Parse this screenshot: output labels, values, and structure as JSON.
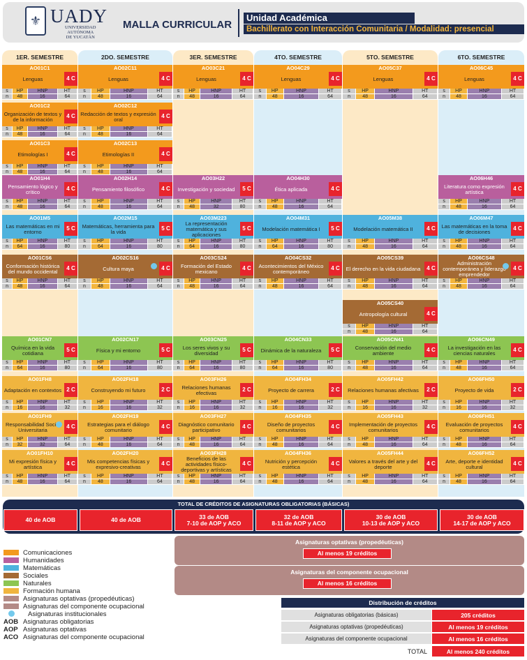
{
  "header": {
    "logo_text": "UADY",
    "university_lines": [
      "UNIVERSIDAD",
      "AUTÓNOMA",
      "DE YUCATÁN"
    ],
    "title": "MALLA CURRICULAR",
    "unit_label": "Unidad Académica",
    "program": "Bachillerato con Interacción Comunitaria / Modalidad: presencial"
  },
  "grid_labels": {
    "s": "s",
    "hp": "HP",
    "hnp": "HNP",
    "ht": "HT",
    "n": "n"
  },
  "colors": {
    "comunicaciones": "#f39a1d",
    "humanidades": "#b95f9d",
    "matematicas": "#4fb2dd",
    "sociales": "#a46a34",
    "naturales": "#8dc552",
    "formacion": "#f0b53f",
    "optativas": "#b38a86",
    "ocupacional": "#b38a86",
    "institucionales": "#73c9ec",
    "credit_red": "#e8242c",
    "navy": "#1d2b4f"
  },
  "semesters": [
    {
      "label": "1ER. SEMESTRE",
      "courses": [
        {
          "row": 0,
          "code": "AO01C1",
          "name": "Lenguas",
          "cr": "4 C",
          "hp": "48",
          "hnp": "16",
          "ht": "64",
          "area": "comunicaciones"
        },
        {
          "row": 1,
          "code": "AO01C2",
          "name": "Organización de textos y de la información",
          "cr": "4 C",
          "hp": "48",
          "hnp": "16",
          "ht": "64",
          "area": "comunicaciones"
        },
        {
          "row": 2,
          "code": "AO01C3",
          "name": "Etimologías I",
          "cr": "4 C",
          "hp": "48",
          "hnp": "16",
          "ht": "64",
          "area": "comunicaciones"
        },
        {
          "row": 3,
          "code": "AO01H4",
          "name": "Pensamiento lógico y crítico",
          "cr": "4 C",
          "hp": "48",
          "hnp": "16",
          "ht": "64",
          "area": "humanidades"
        },
        {
          "row": 4,
          "code": "AO01M5",
          "name": "Las matemáticas en mi entorno",
          "cr": "5 C",
          "hp": "64",
          "hnp": "16",
          "ht": "80",
          "area": "matematicas"
        },
        {
          "row": 5,
          "code": "AO01CS6",
          "name": "Conformación histórica del mundo occidental",
          "cr": "4 C",
          "hp": "48",
          "hnp": "16",
          "ht": "64",
          "area": "sociales"
        },
        {
          "row": 7,
          "code": "AO01CN7",
          "name": "Química en la vida cotidiana",
          "cr": "5 C",
          "hp": "64",
          "hnp": "16",
          "ht": "80",
          "area": "naturales"
        },
        {
          "row": 8,
          "code": "AO01FH8",
          "name": "Adaptación en contextos",
          "cr": "2 C",
          "hp": "16",
          "hnp": "16",
          "ht": "32",
          "area": "formacion"
        },
        {
          "row": 9,
          "code": "AO01FH9",
          "name": "Responsabilidad Social Universitaria",
          "cr": "4 C",
          "hp": "32",
          "hnp": "32",
          "ht": "64",
          "area": "formacion",
          "inst": true
        },
        {
          "row": 10,
          "code": "AO01FH10",
          "name": "Mi expresión física y artística",
          "cr": "4 C",
          "hp": "48",
          "hnp": "16",
          "ht": "64",
          "area": "formacion"
        }
      ]
    },
    {
      "label": "2DO. SEMESTRE",
      "courses": [
        {
          "row": 0,
          "code": "AO02C11",
          "name": "Lenguas",
          "cr": "4 C",
          "hp": "48",
          "hnp": "16",
          "ht": "64",
          "area": "comunicaciones"
        },
        {
          "row": 1,
          "code": "AO02C12",
          "name": "Redacción de textos y expresión oral",
          "cr": "4 C",
          "hp": "48",
          "hnp": "16",
          "ht": "64",
          "area": "comunicaciones"
        },
        {
          "row": 2,
          "code": "AO02C13",
          "name": "Etimologías II",
          "cr": "4 C",
          "hp": "48",
          "hnp": "16",
          "ht": "64",
          "area": "comunicaciones"
        },
        {
          "row": 3,
          "code": "AO02H14",
          "name": "Pensamiento filosófico",
          "cr": "4 C",
          "hp": "48",
          "hnp": "16",
          "ht": "64",
          "area": "humanidades"
        },
        {
          "row": 4,
          "code": "AO02M15",
          "name": "Matemáticas, herramienta para la vida",
          "cr": "5 C",
          "hp": "64",
          "hnp": "16",
          "ht": "80",
          "area": "matematicas"
        },
        {
          "row": 5,
          "code": "AO02CS16",
          "name": "Cultura maya",
          "cr": "4 C",
          "hp": "48",
          "hnp": "16",
          "ht": "64",
          "area": "sociales",
          "inst": true
        },
        {
          "row": 7,
          "code": "AO02CN17",
          "name": "Física y mi entorno",
          "cr": "5 C",
          "hp": "64",
          "hnp": "16",
          "ht": "80",
          "area": "naturales"
        },
        {
          "row": 8,
          "code": "AO02FH18",
          "name": "Construyendo mi futuro",
          "cr": "2 C",
          "hp": "16",
          "hnp": "16",
          "ht": "32",
          "area": "formacion"
        },
        {
          "row": 9,
          "code": "AO02FH19",
          "name": "Estrategias para el diálogo comunitario",
          "cr": "4 C",
          "hp": "48",
          "hnp": "16",
          "ht": "64",
          "area": "formacion"
        },
        {
          "row": 10,
          "code": "AO02FH20",
          "name": "Mis competencias físicas y expresivo-creativas",
          "cr": "4 C",
          "hp": "48",
          "hnp": "16",
          "ht": "64",
          "area": "formacion"
        }
      ]
    },
    {
      "label": "3ER. SEMESTRE",
      "courses": [
        {
          "row": 0,
          "code": "AO03C21",
          "name": "Lenguas",
          "cr": "4 C",
          "hp": "48",
          "hnp": "16",
          "ht": "64",
          "area": "comunicaciones"
        },
        {
          "row": 3,
          "code": "AO03H22",
          "name": "Investigación y sociedad",
          "cr": "5 C",
          "hp": "48",
          "hnp": "32",
          "ht": "80",
          "area": "humanidades"
        },
        {
          "row": 4,
          "code": "AO03M223",
          "name": "La representación matemática y sus aplicaciones",
          "cr": "5 C",
          "hp": "64",
          "hnp": "16",
          "ht": "80",
          "area": "matematicas"
        },
        {
          "row": 5,
          "code": "AO03CS24",
          "name": "Formación del Estado mexicano",
          "cr": "4 C",
          "hp": "48",
          "hnp": "16",
          "ht": "64",
          "area": "sociales"
        },
        {
          "row": 7,
          "code": "AO03CN25",
          "name": "Los seres vivos y su diversidad",
          "cr": "5 C",
          "hp": "64",
          "hnp": "16",
          "ht": "80",
          "area": "naturales"
        },
        {
          "row": 8,
          "code": "AO03FH26",
          "name": "Relaciones humanas efectivas",
          "cr": "2 C",
          "hp": "16",
          "hnp": "16",
          "ht": "32",
          "area": "formacion"
        },
        {
          "row": 9,
          "code": "AO03FH27",
          "name": "Diagnóstico comunitario participativo",
          "cr": "4 C",
          "hp": "48",
          "hnp": "16",
          "ht": "64",
          "area": "formacion"
        },
        {
          "row": 10,
          "code": "AO03FH28",
          "name": "Beneficios de las actividades físico-deportivas y artísticas",
          "cr": "4 C",
          "hp": "48",
          "hnp": "16",
          "ht": "64",
          "area": "formacion"
        }
      ]
    },
    {
      "label": "4TO. SEMESTRE",
      "courses": [
        {
          "row": 0,
          "code": "AO04C29",
          "name": "Lenguas",
          "cr": "4 C",
          "hp": "48",
          "hnp": "16",
          "ht": "64",
          "area": "comunicaciones"
        },
        {
          "row": 3,
          "code": "AO04H30",
          "name": "Ética aplicada",
          "cr": "4 C",
          "hp": "48",
          "hnp": "16",
          "ht": "64",
          "area": "humanidades"
        },
        {
          "row": 4,
          "code": "AO04M31",
          "name": "Modelación matemática I",
          "cr": "5 C",
          "hp": "64",
          "hnp": "16",
          "ht": "80",
          "area": "matematicas"
        },
        {
          "row": 5,
          "code": "AO04CS32",
          "name": "Acontecimientos del México contemporáneo",
          "cr": "4 C",
          "hp": "48",
          "hnp": "16",
          "ht": "64",
          "area": "sociales"
        },
        {
          "row": 7,
          "code": "AO04CN33",
          "name": "Dinámica de la naturaleza",
          "cr": "5 C",
          "hp": "64",
          "hnp": "16",
          "ht": "80",
          "area": "naturales"
        },
        {
          "row": 8,
          "code": "AO04FH34",
          "name": "Proyecto de carrera",
          "cr": "2 C",
          "hp": "16",
          "hnp": "16",
          "ht": "32",
          "area": "formacion"
        },
        {
          "row": 9,
          "code": "AO04FH35",
          "name": "Diseño de proyectos comunitarios",
          "cr": "4 C",
          "hp": "48",
          "hnp": "16",
          "ht": "64",
          "area": "formacion"
        },
        {
          "row": 10,
          "code": "AO04FH36",
          "name": "Nutrición y percepción estética",
          "cr": "4 C",
          "hp": "48",
          "hnp": "16",
          "ht": "64",
          "area": "formacion"
        }
      ]
    },
    {
      "label": "5TO. SEMESTRE",
      "courses": [
        {
          "row": 0,
          "code": "AO05C37",
          "name": "Lenguas",
          "cr": "4 C",
          "hp": "48",
          "hnp": "16",
          "ht": "64",
          "area": "comunicaciones"
        },
        {
          "row": 4,
          "code": "AO05M38",
          "name": "Modelación matemática II",
          "cr": "4 C",
          "hp": "48",
          "hnp": "16",
          "ht": "64",
          "area": "matematicas"
        },
        {
          "row": 5,
          "code": "AO05CS39",
          "name": "El derecho en la vida ciudadana",
          "cr": "4 C",
          "hp": "48",
          "hnp": "16",
          "ht": "64",
          "area": "sociales"
        },
        {
          "row": 6,
          "code": "AO05CS40",
          "name": "Antropología cultural",
          "cr": "4 C",
          "hp": "48",
          "hnp": "16",
          "ht": "64",
          "area": "sociales"
        },
        {
          "row": 7,
          "code": "AO05CN41",
          "name": "Conservación del medio ambiente",
          "cr": "4 C",
          "hp": "48",
          "hnp": "16",
          "ht": "64",
          "area": "naturales"
        },
        {
          "row": 8,
          "code": "AO05FH42",
          "name": "Relaciones humanas afectivas",
          "cr": "2 C",
          "hp": "16",
          "hnp": "16",
          "ht": "32",
          "area": "formacion"
        },
        {
          "row": 9,
          "code": "AO05FH43",
          "name": "Implementación de proyectos comunitarios",
          "cr": "4 C",
          "hp": "48",
          "hnp": "16",
          "ht": "64",
          "area": "formacion"
        },
        {
          "row": 10,
          "code": "AO05FH44",
          "name": "Valores a través del arte y del deporte",
          "cr": "4 C",
          "hp": "48",
          "hnp": "16",
          "ht": "64",
          "area": "formacion"
        }
      ]
    },
    {
      "label": "6TO. SEMESTRE",
      "courses": [
        {
          "row": 0,
          "code": "AO06C45",
          "name": "Lenguas",
          "cr": "4 C",
          "hp": "48",
          "hnp": "16",
          "ht": "64",
          "area": "comunicaciones"
        },
        {
          "row": 3,
          "code": "AO06H46",
          "name": "Literatura como expresión artística",
          "cr": "4 C",
          "hp": "48",
          "hnp": "16",
          "ht": "64",
          "area": "humanidades"
        },
        {
          "row": 4,
          "code": "AO06M47",
          "name": "Las matemáticas en la toma de decisiones",
          "cr": "4 C",
          "hp": "48",
          "hnp": "16",
          "ht": "64",
          "area": "matematicas"
        },
        {
          "row": 5,
          "code": "AO06CS48",
          "name": "Administración contemporánea y liderazgo emprendedor",
          "cr": "4 C",
          "hp": "48",
          "hnp": "16",
          "ht": "64",
          "area": "sociales",
          "inst": true
        },
        {
          "row": 7,
          "code": "AO06CN49",
          "name": "La investigación en las ciencias naturales",
          "cr": "4 C",
          "hp": "48",
          "hnp": "16",
          "ht": "64",
          "area": "naturales"
        },
        {
          "row": 8,
          "code": "AO06FH50",
          "name": "Proyecto de vida",
          "cr": "2 C",
          "hp": "16",
          "hnp": "16",
          "ht": "32",
          "area": "formacion"
        },
        {
          "row": 9,
          "code": "AO06FH51",
          "name": "Evaluación de proyectos comunitarios",
          "cr": "4 C",
          "hp": "48",
          "hnp": "16",
          "ht": "64",
          "area": "formacion"
        },
        {
          "row": 10,
          "code": "AO06FH52",
          "name": "Arte, deporte e identidad cultural",
          "cr": "4 C",
          "hp": "48",
          "hnp": "16",
          "ht": "64",
          "area": "formacion"
        }
      ]
    }
  ],
  "totals": {
    "title": "TOTAL DE CRÉDITOS DE ASIGNATURAS OBLIGATORIAS (BÁSICAS)",
    "cells": [
      "40 de AOB",
      "40 de AOB",
      "33 de AOB\n7-10 de AOP y ACO",
      "32 de AOB\n8-11 de AOP y ACO",
      "30 de AOB\n10-13 de AOP y ACO",
      "30 de AOB\n14-17 de AOP y ACO"
    ]
  },
  "optativas": {
    "title": "Asignaturas optativas (propedéuticas)",
    "value": "Al menos 19 créditos"
  },
  "ocupacional": {
    "title": "Asignaturas del componente ocupacional",
    "value": "Al menos 16 créditos"
  },
  "legend": [
    {
      "label": "Comunicaciones",
      "color": "#f39a1d"
    },
    {
      "label": "Humanidades",
      "color": "#b95f9d"
    },
    {
      "label": "Matemáticas",
      "color": "#4fb2dd"
    },
    {
      "label": "Sociales",
      "color": "#a46a34"
    },
    {
      "label": "Naturales",
      "color": "#8dc552"
    },
    {
      "label": "Formación humana",
      "color": "#f0b53f"
    },
    {
      "label": "Asignaturas optativas (propedéuticas)",
      "color": "#b38a86"
    },
    {
      "label": "Asignaturas del componente ocupacional",
      "color": "#b38a86"
    }
  ],
  "legend_inst": "Asignaturas institucionales",
  "legend_abbr": [
    {
      "abbr": "AOB",
      "label": "Asignaturas obligatorias"
    },
    {
      "abbr": "AOP",
      "label": "Asignaturas optativas"
    },
    {
      "abbr": "ACO",
      "label": "Asignaturas del componente ocupacional"
    }
  ],
  "distribution": {
    "title": "Distribución de créditos",
    "rows": [
      {
        "label": "Asignaturas obligatorias (básicas)",
        "value": "205 créditos"
      },
      {
        "label": "Asignaturas optativas (propedéuticas)",
        "value": "Al menos 19 créditos"
      },
      {
        "label": "Asignaturas del componente ocupacional",
        "value": "Al menos 16 créditos"
      }
    ],
    "total_label": "TOTAL",
    "total_value": "Al menos 240 créditos"
  }
}
